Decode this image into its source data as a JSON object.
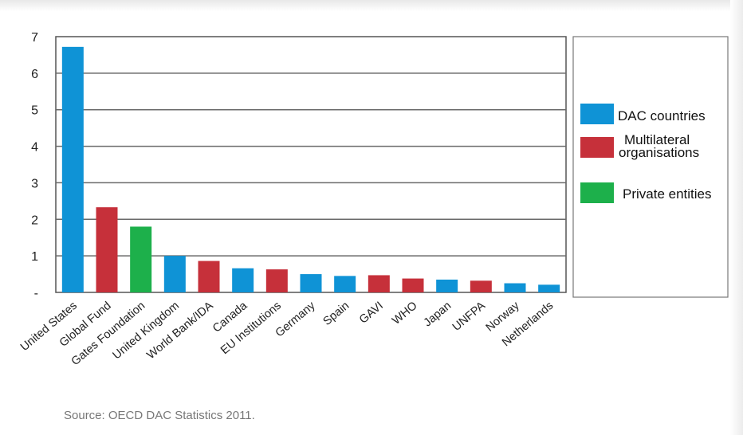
{
  "chart_data": {
    "type": "bar",
    "categories": [
      "United States",
      "Global Fund",
      "Gates Foundation",
      "United Kingdom",
      "World Bank/IDA",
      "Canada",
      "EU Institutions",
      "Germany",
      "Spain",
      "GAVI",
      "WHO",
      "Japan",
      "UNFPA",
      "Norway",
      "Netherlands"
    ],
    "values": [
      6.72,
      2.33,
      1.8,
      1.0,
      0.86,
      0.66,
      0.63,
      0.5,
      0.45,
      0.47,
      0.38,
      0.35,
      0.32,
      0.25,
      0.21
    ],
    "groups": [
      "DAC countries",
      "Multilateral organisations",
      "Private entities",
      "DAC countries",
      "Multilateral organisations",
      "DAC countries",
      "Multilateral organisations",
      "DAC countries",
      "DAC countries",
      "Multilateral organisations",
      "Multilateral organisations",
      "DAC countries",
      "Multilateral organisations",
      "DAC countries",
      "DAC countries"
    ],
    "ylim": [
      0,
      7
    ],
    "yticks": [
      {
        "value": 0,
        "label": "-"
      },
      {
        "value": 1,
        "label": "1"
      },
      {
        "value": 2,
        "label": "2"
      },
      {
        "value": 3,
        "label": "3"
      },
      {
        "value": 4,
        "label": "4"
      },
      {
        "value": 5,
        "label": "5"
      },
      {
        "value": 6,
        "label": "6"
      },
      {
        "value": 7,
        "label": "7"
      }
    ],
    "grid": true,
    "legend_position": "right",
    "legend": [
      {
        "label": "DAC countries",
        "color": "#0f93d6"
      },
      {
        "label": "Multilateral organisations",
        "color": "#c6303a"
      },
      {
        "label": "Private entities",
        "color": "#1db04b"
      }
    ],
    "title": "",
    "xlabel": "",
    "ylabel": ""
  },
  "source": "Source:  OECD DAC Statistics 2011."
}
